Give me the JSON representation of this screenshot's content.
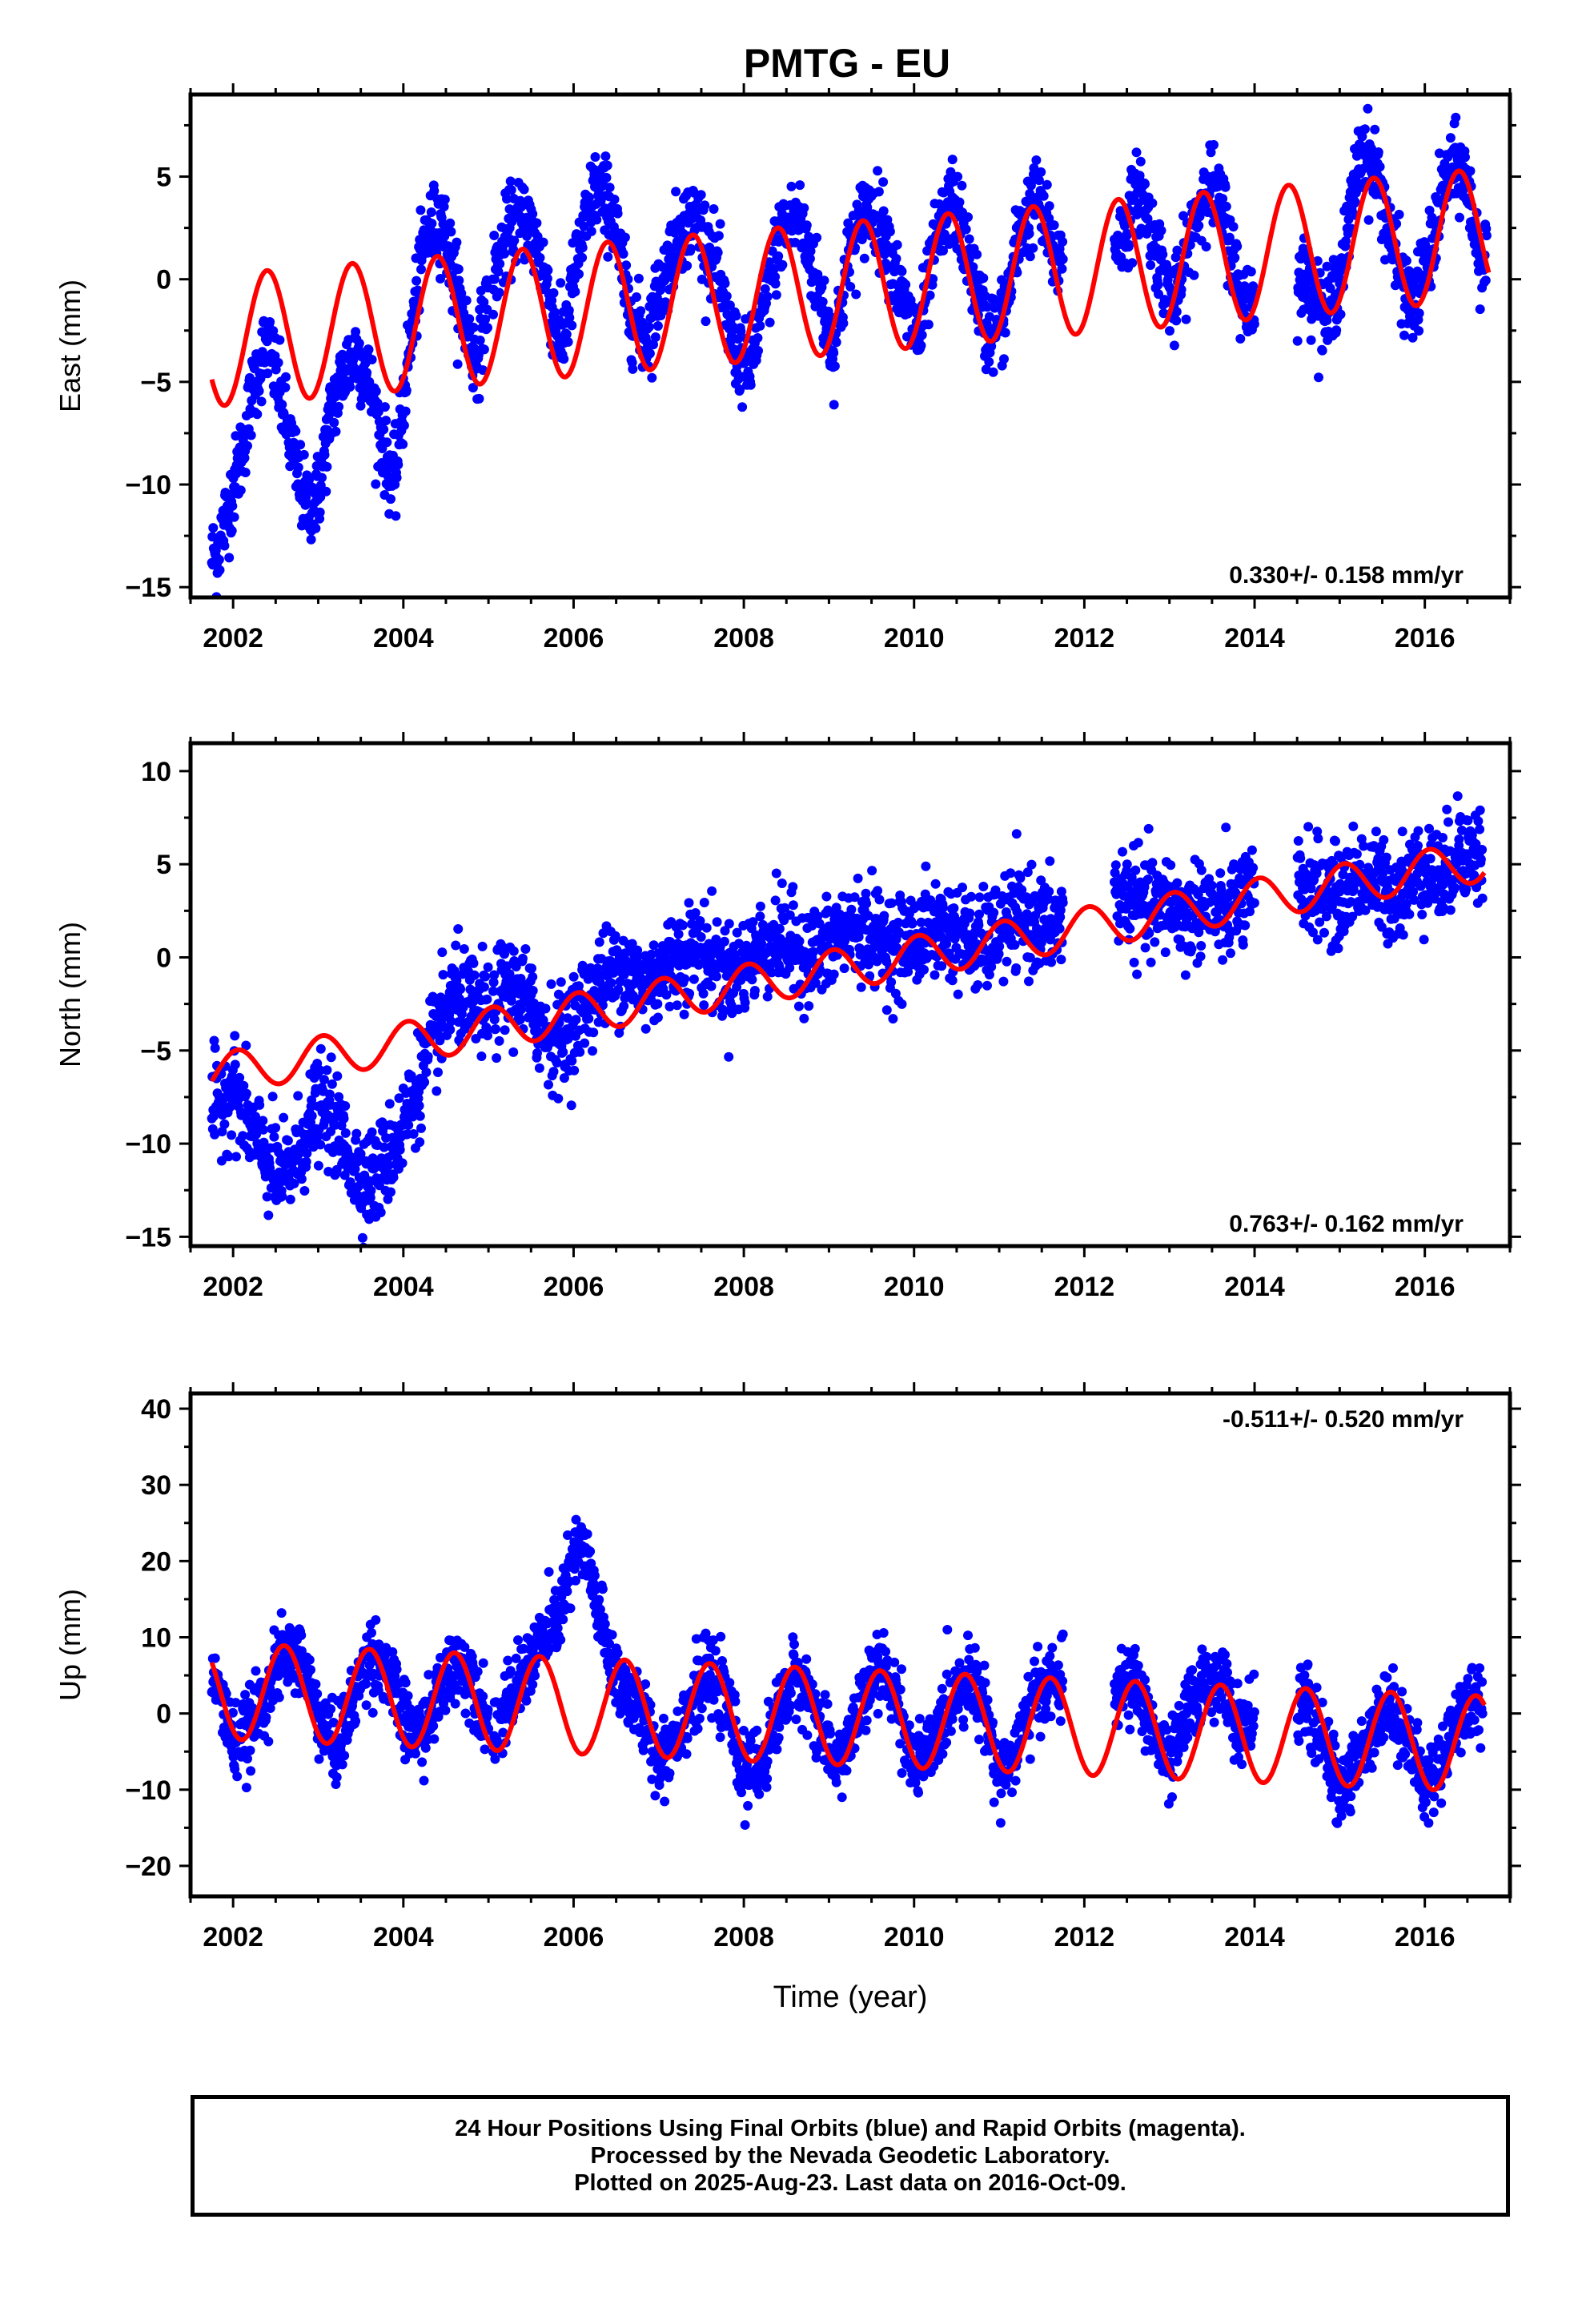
{
  "title": "PMTG - EU",
  "colors": {
    "observations": "#0000ff",
    "model": "#ff0000",
    "axes": "#000000"
  },
  "footer": {
    "line1": "24 Hour Positions Using Final Orbits (blue) and Rapid Orbits (magenta).",
    "line2": "Processed by the Nevada Geodetic Laboratory.",
    "line3": "Plotted on 2025-Aug-23. Last data on 2016-Oct-09."
  },
  "chart_data": [
    {
      "type": "scatter",
      "ylabel": "East (mm)",
      "xlim": [
        2001.5,
        2017.0
      ],
      "ylim": [
        -15.5,
        9.0
      ],
      "xticks": [
        2002,
        2004,
        2006,
        2008,
        2010,
        2012,
        2014,
        2016
      ],
      "yticks": [
        -15,
        -10,
        -5,
        0,
        5
      ],
      "rate_label": "0.330+/- 0.158 mm/yr",
      "rate_label_position": "bottom-right",
      "series": [
        {
          "kind": "points",
          "x": [
            2001.8,
            2001.95,
            2002.1,
            2002.25,
            2002.4,
            2002.55,
            2002.7,
            2002.85,
            2003.0,
            2003.15,
            2003.3,
            2003.45,
            2003.6,
            2003.75,
            2003.9,
            2004.05,
            2004.25,
            2004.45,
            2004.65,
            2004.85,
            2005.05,
            2005.25,
            2005.45,
            2005.65,
            2005.85,
            2006.05,
            2006.25,
            2006.45,
            2006.65,
            2006.85,
            2007.05,
            2007.25,
            2007.45,
            2007.65,
            2007.85,
            2008.05,
            2008.25,
            2008.45,
            2008.65,
            2008.85,
            2009.05,
            2009.25,
            2009.45,
            2009.65,
            2009.85,
            2010.05,
            2010.25,
            2010.45,
            2010.65,
            2010.85,
            2011.05,
            2011.25,
            2011.45,
            2011.65,
            2012.45,
            2012.65,
            2012.85,
            2013.05,
            2013.25,
            2013.45,
            2013.65,
            2013.85,
            2014.65,
            2014.85,
            2015.05,
            2015.25,
            2015.45,
            2015.65,
            2015.85,
            2016.05,
            2016.25,
            2016.45,
            2016.65
          ],
          "y": [
            -13.5,
            -11.0,
            -8.5,
            -5.0,
            -3.0,
            -5.5,
            -8.5,
            -11.0,
            -10.5,
            -6.5,
            -4.5,
            -3.5,
            -5.0,
            -8.0,
            -10.0,
            -4.0,
            2.0,
            3.0,
            -1.0,
            -4.0,
            0.0,
            2.5,
            3.0,
            0.5,
            -3.5,
            1.0,
            4.5,
            3.5,
            -1.5,
            -3.0,
            0.0,
            2.5,
            3.0,
            1.0,
            -3.0,
            -4.5,
            -1.0,
            2.5,
            3.0,
            0.0,
            -3.5,
            1.5,
            3.5,
            2.5,
            -1.0,
            -3.0,
            1.5,
            4.0,
            1.0,
            -2.5,
            -2.0,
            2.5,
            4.0,
            1.0,
            2.0,
            4.5,
            1.5,
            -1.5,
            2.0,
            5.0,
            3.0,
            -1.0,
            0.0,
            -2.0,
            1.0,
            6.5,
            5.0,
            1.0,
            -1.5,
            1.0,
            5.0,
            5.5,
            1.0
          ]
        },
        {
          "kind": "model",
          "description_values": "seasonal sinusoid plus linear trend",
          "trend_start": -3.0,
          "trend_end": 2.2,
          "amplitude": 3.2,
          "phase_peak_fraction": 0.4
        }
      ]
    },
    {
      "type": "scatter",
      "ylabel": "North (mm)",
      "xlim": [
        2001.5,
        2017.0
      ],
      "ylim": [
        -15.5,
        11.5
      ],
      "xticks": [
        2002,
        2004,
        2006,
        2008,
        2010,
        2012,
        2014,
        2016
      ],
      "yticks": [
        -15,
        -10,
        -5,
        0,
        5,
        10
      ],
      "rate_label": "0.763+/- 0.162 mm/yr",
      "rate_label_position": "bottom-right",
      "series": [
        {
          "kind": "points",
          "x": [
            2001.8,
            2002.0,
            2002.2,
            2002.4,
            2002.6,
            2002.8,
            2003.0,
            2003.2,
            2003.4,
            2003.6,
            2003.8,
            2004.0,
            2004.2,
            2004.4,
            2004.6,
            2004.8,
            2005.0,
            2005.2,
            2005.4,
            2005.6,
            2005.8,
            2006.0,
            2006.2,
            2006.4,
            2006.6,
            2006.8,
            2007.0,
            2007.2,
            2007.4,
            2007.6,
            2007.8,
            2008.0,
            2008.2,
            2008.4,
            2008.6,
            2008.8,
            2009.0,
            2009.2,
            2009.4,
            2009.6,
            2009.8,
            2010.0,
            2010.2,
            2010.4,
            2010.6,
            2010.8,
            2011.0,
            2011.2,
            2011.4,
            2011.6,
            2012.4,
            2012.6,
            2012.8,
            2013.0,
            2013.2,
            2013.4,
            2013.6,
            2013.8,
            2014.6,
            2014.8,
            2015.0,
            2015.2,
            2015.4,
            2015.6,
            2015.8,
            2016.0,
            2016.2,
            2016.4,
            2016.6
          ],
          "y": [
            -8.0,
            -7.0,
            -9.0,
            -11.0,
            -12.0,
            -10.0,
            -8.0,
            -9.0,
            -11.0,
            -12.0,
            -11.0,
            -9.0,
            -6.5,
            -4.0,
            -2.0,
            -2.5,
            -3.0,
            -1.5,
            -2.0,
            -3.5,
            -4.5,
            -3.5,
            -2.0,
            -1.0,
            -0.5,
            -1.5,
            -1.0,
            0.0,
            0.5,
            0.0,
            -1.0,
            -0.5,
            0.5,
            1.0,
            0.5,
            0.0,
            0.5,
            1.5,
            1.5,
            1.0,
            0.5,
            1.0,
            1.5,
            1.5,
            1.0,
            0.5,
            1.5,
            2.0,
            2.0,
            1.5,
            3.5,
            3.0,
            2.5,
            3.0,
            2.0,
            3.0,
            2.0,
            3.0,
            4.0,
            3.5,
            3.0,
            4.5,
            4.0,
            3.5,
            4.0,
            5.0,
            4.0,
            6.0,
            5.5
          ]
        },
        {
          "kind": "model",
          "description_values": "seasonal sinusoid plus linear trend",
          "trend_start": -6.3,
          "trend_end": 5.2,
          "amplitude": 1.1,
          "phase_peak_fraction": 0.05
        }
      ]
    },
    {
      "type": "scatter",
      "ylabel": "Up (mm)",
      "xlabel": "Time (year)",
      "xlim": [
        2001.5,
        2017.0
      ],
      "ylim": [
        -24.0,
        42.0
      ],
      "xticks": [
        2002,
        2004,
        2006,
        2008,
        2010,
        2012,
        2014,
        2016
      ],
      "yticks": [
        -20,
        -10,
        0,
        10,
        20,
        30,
        40
      ],
      "rate_label": "-0.511+/- 0.520 mm/yr",
      "rate_label_position": "top-right",
      "series": [
        {
          "kind": "points",
          "x": [
            2001.8,
            2002.0,
            2002.2,
            2002.4,
            2002.6,
            2002.8,
            2003.0,
            2003.2,
            2003.4,
            2003.6,
            2003.8,
            2004.0,
            2004.2,
            2004.4,
            2004.6,
            2004.8,
            2005.0,
            2005.2,
            2005.4,
            2005.6,
            2005.8,
            2006.0,
            2006.1,
            2006.2,
            2006.4,
            2006.6,
            2006.8,
            2007.0,
            2007.2,
            2007.4,
            2007.6,
            2007.8,
            2008.0,
            2008.2,
            2008.4,
            2008.6,
            2008.8,
            2009.0,
            2009.2,
            2009.4,
            2009.6,
            2009.8,
            2010.0,
            2010.2,
            2010.4,
            2010.6,
            2010.8,
            2011.0,
            2011.2,
            2011.4,
            2011.6,
            2012.4,
            2012.6,
            2012.8,
            2013.0,
            2013.2,
            2013.4,
            2013.6,
            2013.8,
            2014.6,
            2014.8,
            2015.0,
            2015.2,
            2015.4,
            2015.6,
            2015.8,
            2016.0,
            2016.2,
            2016.4,
            2016.6
          ],
          "y": [
            4.0,
            -4.0,
            -2.0,
            3.0,
            8.0,
            7.0,
            0.0,
            -5.0,
            1.0,
            8.0,
            6.0,
            -1.0,
            -3.0,
            2.0,
            7.0,
            5.0,
            -2.0,
            0.0,
            5.0,
            9.0,
            12.0,
            20.0,
            22.0,
            18.0,
            8.0,
            3.0,
            0.0,
            -6.0,
            -3.0,
            2.0,
            5.0,
            1.0,
            -8.0,
            -7.0,
            0.0,
            5.0,
            2.0,
            -6.0,
            -5.0,
            2.0,
            6.0,
            2.0,
            -7.0,
            -5.0,
            1.0,
            5.0,
            2.0,
            -8.0,
            -5.0,
            2.0,
            4.0,
            3.0,
            4.0,
            -2.0,
            -7.0,
            0.0,
            4.0,
            5.0,
            -2.0,
            2.0,
            -4.0,
            -10.0,
            -7.0,
            -1.0,
            1.0,
            -3.0,
            -10.0,
            -6.0,
            0.0,
            2.0
          ]
        },
        {
          "kind": "model",
          "description_values": "seasonal sinusoid plus linear trend",
          "trend_start": 3.0,
          "trend_end": -4.0,
          "amplitude": 6.3,
          "phase_peak_fraction": 0.6
        }
      ]
    }
  ]
}
